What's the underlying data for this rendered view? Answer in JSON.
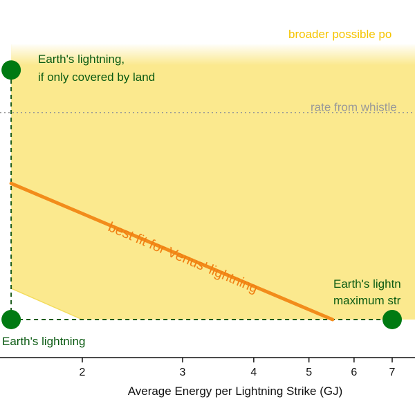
{
  "chart_data": {
    "type": "scatter",
    "title": "",
    "xlabel": "Average Energy per Lightning Strike (GJ)",
    "ylabel": "",
    "x_scale": "log",
    "xlim": [
      1.5,
      8
    ],
    "ylim": [
      0,
      10
    ],
    "x_ticks": [
      2,
      3,
      4,
      5,
      6,
      7
    ],
    "x_tick_labels": [
      "2",
      "3",
      "4",
      "5",
      "6",
      "7"
    ],
    "region": {
      "label": "broader possible po",
      "color": "#fbe98e",
      "label_color": "#f5c400",
      "upper_edge": [
        [
          1.5,
          9.7
        ],
        [
          8,
          9.7
        ]
      ],
      "lower_edge": [
        [
          1.5,
          1.1
        ],
        [
          2,
          0
        ],
        [
          8,
          0
        ]
      ]
    },
    "reference_line": {
      "label": "rate from whistle",
      "y": 7.3,
      "color": "#999999"
    },
    "fit_line": {
      "label": "best fit for Venus' lightning",
      "color": "#f28c1b",
      "points": [
        [
          1.5,
          4.8
        ],
        [
          5.5,
          0
        ]
      ]
    },
    "points": [
      {
        "x": 1.5,
        "y": 0,
        "label": "Earth's lightning"
      },
      {
        "x": 1.5,
        "y": 8.8,
        "label_line1": "Earth's lightning,",
        "label_line2": "if only covered by land"
      },
      {
        "x": 7,
        "y": 0,
        "label_line1": "Earth's lightn",
        "label_line2": "maximum str"
      }
    ],
    "connectors": "dashed",
    "colors": {
      "point": "#007a12",
      "point_label": "#0a5a12",
      "connector": "#1a5a1a"
    }
  }
}
